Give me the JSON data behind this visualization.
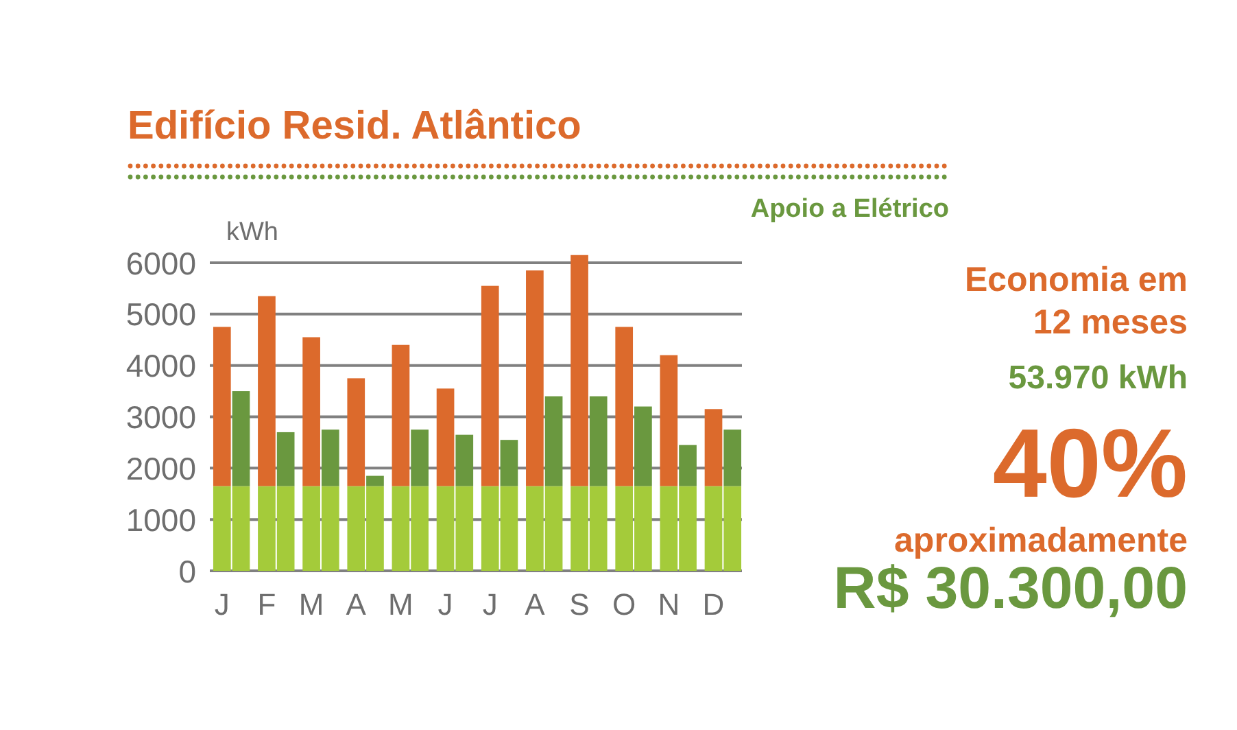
{
  "chart_data": {
    "type": "bar",
    "title": "Edifício Resid. Atlântico",
    "subtitle": "Apoio a Elétrico",
    "ylabel": "kWh",
    "categories": [
      "J",
      null,
      "F",
      null,
      "M",
      null,
      "A",
      null,
      "M",
      null,
      "J",
      null,
      "J",
      null,
      "A",
      null,
      "S",
      null,
      "O",
      null,
      "N",
      null,
      "D",
      null
    ],
    "stacked": true,
    "series": [
      {
        "color": "#a4cb3a",
        "values": [
          1650,
          1650,
          1650,
          1650,
          1650,
          1650,
          1650,
          1650,
          1650,
          1650,
          1650,
          1650,
          1650,
          1650,
          1650,
          1650,
          1650,
          1650,
          1650,
          1650,
          1650,
          1650,
          1650,
          1650
        ]
      },
      {
        "colors": [
          "#dc6a2c",
          "#6a983f",
          "#dc6a2c",
          "#6a983f",
          "#dc6a2c",
          "#6a983f",
          "#dc6a2c",
          "#6a983f",
          "#dc6a2c",
          "#6a983f",
          "#dc6a2c",
          "#6a983f",
          "#dc6a2c",
          "#6a983f",
          "#dc6a2c",
          "#6a983f",
          "#dc6a2c",
          "#6a983f",
          "#dc6a2c",
          "#6a983f",
          "#dc6a2c",
          "#6a983f",
          "#dc6a2c",
          "#6a983f"
        ],
        "values": [
          3100,
          1850,
          3700,
          1050,
          2900,
          1100,
          2100,
          200,
          2750,
          1100,
          1900,
          1000,
          3900,
          900,
          4200,
          1750,
          4500,
          1750,
          3100,
          1550,
          2550,
          800,
          1500,
          1100
        ]
      }
    ],
    "ylim": [
      0,
      6200
    ],
    "yticks": [
      0,
      1000,
      2000,
      3000,
      4000,
      5000,
      6000
    ],
    "grid": "y",
    "annotations": [
      "Economia em 12 meses",
      "53.970 kWh",
      "40%",
      "aproximadamente",
      "R$ 30.300,00"
    ]
  }
}
